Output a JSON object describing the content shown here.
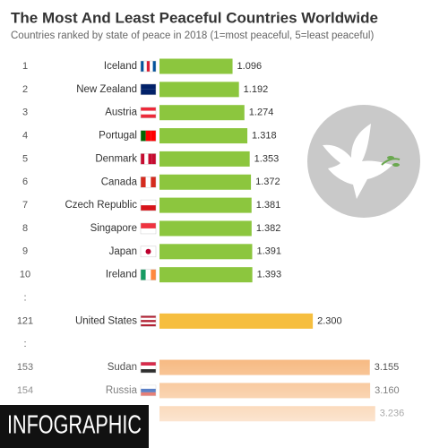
{
  "chart_data": {
    "type": "bar",
    "title": "The Most And Least Peaceful Countries Worldwide",
    "subtitle": "Countries ranked by state of peace in 2018 (1=most peaceful, 5=least peaceful)",
    "ranks": [
      "1",
      "2",
      "3",
      "4",
      "5",
      "6",
      "7",
      "8",
      "9",
      "10",
      ":",
      "121",
      ":",
      "153",
      "154",
      null
    ],
    "categories": [
      "Iceland",
      "New Zealand",
      "Austria",
      "Portugal",
      "Denmark",
      "Canada",
      "Czech Republic",
      "Singapore",
      "Japan",
      "Ireland",
      null,
      "United States",
      null,
      "Sudan",
      "Russia",
      null
    ],
    "values": [
      1.096,
      1.192,
      1.274,
      1.318,
      1.353,
      1.372,
      1.381,
      1.382,
      1.391,
      1.393,
      null,
      2.3,
      null,
      3.155,
      3.16,
      3.236
    ],
    "value_labels": [
      "1.096",
      "1.192",
      "1.274",
      "1.318",
      "1.353",
      "1.372",
      "1.381",
      "1.382",
      "1.391",
      "1.393",
      null,
      "2.300",
      null,
      "3.155",
      "3.160",
      "3.236"
    ],
    "colors": [
      "#8cc63e",
      "#8cc63e",
      "#8cc63e",
      "#8cc63e",
      "#8cc63e",
      "#8cc63e",
      "#8cc63e",
      "#8cc63e",
      "#8cc63e",
      "#8cc63e",
      null,
      "#f6be3e",
      null,
      "#f6b478",
      "#f6b478",
      "#f6b478"
    ]
  },
  "badge": "INFOGRAPHIC"
}
